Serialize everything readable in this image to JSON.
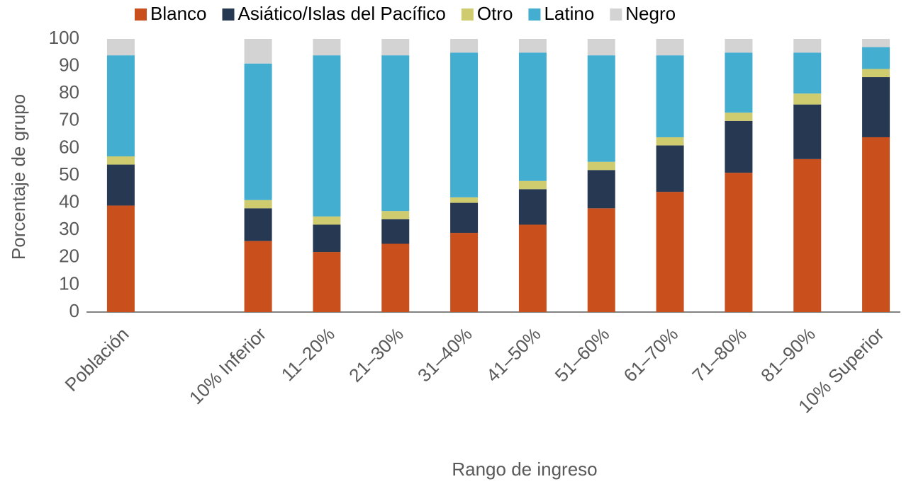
{
  "chart_data": {
    "type": "stacked_bar",
    "x_label": "Rango de ingreso",
    "y_label": "Porcentaje de grupo",
    "categories": [
      "Población",
      null,
      "10% Inferior",
      "11–20%",
      "21–30%",
      "31–40%",
      "41–50%",
      "51–60%",
      "61–70%",
      "71–80%",
      "81–90%",
      "10% Superior"
    ],
    "series": [
      {
        "name": "Blanco",
        "color": "#c9501c",
        "values": [
          39,
          null,
          26,
          22,
          25,
          29,
          32,
          38,
          44,
          51,
          56,
          64
        ]
      },
      {
        "name": "Asiático/Islas del Pacífico",
        "color": "#263852",
        "values": [
          15,
          null,
          12,
          10,
          9,
          11,
          13,
          14,
          17,
          19,
          20,
          22
        ]
      },
      {
        "name": "Otro",
        "color": "#cfcb6f",
        "values": [
          3,
          null,
          3,
          3,
          3,
          2,
          3,
          3,
          3,
          3,
          4,
          3
        ]
      },
      {
        "name": "Latino",
        "color": "#44aed1",
        "values": [
          37,
          null,
          50,
          59,
          57,
          53,
          47,
          39,
          30,
          22,
          15,
          8
        ]
      },
      {
        "name": "Negro",
        "color": "#d3d3d3",
        "values": [
          6,
          null,
          9,
          6,
          6,
          5,
          5,
          6,
          6,
          5,
          5,
          3
        ]
      }
    ],
    "ylim": [
      0,
      100
    ],
    "yticks": [
      0,
      10,
      20,
      30,
      40,
      50,
      60,
      70,
      80,
      90,
      100
    ],
    "legend": "top"
  }
}
